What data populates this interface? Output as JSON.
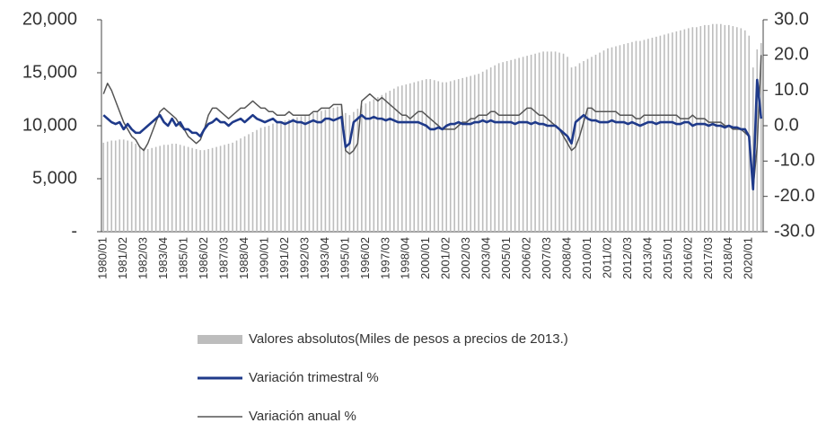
{
  "chart_data": {
    "type": "bar-line",
    "categories": [
      "1980/01",
      null,
      null,
      null,
      null,
      "1981/02",
      null,
      null,
      null,
      null,
      "1982/03",
      null,
      null,
      null,
      null,
      "1983/04",
      null,
      null,
      null,
      null,
      "1985/01",
      null,
      null,
      null,
      null,
      "1986/02",
      null,
      null,
      null,
      null,
      "1987/03",
      null,
      null,
      null,
      null,
      "1988/04",
      null,
      null,
      null,
      null,
      "1990/01",
      null,
      null,
      null,
      null,
      "1991/02",
      null,
      null,
      null,
      null,
      "1992/03",
      null,
      null,
      null,
      null,
      "1993/04",
      null,
      null,
      null,
      null,
      "1995/01",
      null,
      null,
      null,
      null,
      "1996/02",
      null,
      null,
      null,
      null,
      "1997/03",
      null,
      null,
      null,
      null,
      "1998/04",
      null,
      null,
      null,
      null,
      "2000/01",
      null,
      null,
      null,
      null,
      "2001/02",
      null,
      null,
      null,
      null,
      "2002/03",
      null,
      null,
      null,
      null,
      "2003/04",
      null,
      null,
      null,
      null,
      "2005/01",
      null,
      null,
      null,
      null,
      "2006/02",
      null,
      null,
      null,
      null,
      "2007/03",
      null,
      null,
      null,
      null,
      "2008/04",
      null,
      null,
      null,
      null,
      "2010/01",
      null,
      null,
      null,
      null,
      "2011/02",
      null,
      null,
      null,
      null,
      "2012/03",
      null,
      null,
      null,
      null,
      "2013/04",
      null,
      null,
      null,
      null,
      "2015/01",
      null,
      null,
      null,
      null,
      "2016/02",
      null,
      null,
      null,
      null,
      "2017/03",
      null,
      null,
      null,
      null,
      "2018/04",
      null,
      null,
      null,
      null,
      "2020/01",
      null,
      null,
      null
    ],
    "series": [
      {
        "name": "Valores absolutos(Miles de pesos a precios de 2013.)",
        "type": "bar",
        "color": "#bdbdbd",
        "values": [
          8400,
          8500,
          8600,
          8600,
          8700,
          8700,
          8600,
          8500,
          8300,
          8100,
          7900,
          7800,
          7900,
          8000,
          8100,
          8200,
          8200,
          8300,
          8300,
          8200,
          8100,
          8000,
          7900,
          7800,
          7700,
          7700,
          7800,
          7900,
          8000,
          8100,
          8200,
          8300,
          8400,
          8600,
          8800,
          9000,
          9200,
          9400,
          9600,
          9800,
          9900,
          10000,
          10200,
          10300,
          10400,
          10500,
          10600,
          10700,
          10800,
          10900,
          11000,
          11100,
          11200,
          11300,
          11400,
          11500,
          11600,
          11700,
          11800,
          11900,
          11200,
          11000,
          11300,
          11600,
          11900,
          12100,
          12300,
          12500,
          12700,
          12900,
          13100,
          13300,
          13500,
          13700,
          13800,
          13900,
          14000,
          14100,
          14200,
          14300,
          14400,
          14400,
          14300,
          14200,
          14100,
          14100,
          14200,
          14300,
          14400,
          14500,
          14600,
          14700,
          14800,
          14900,
          15100,
          15300,
          15500,
          15700,
          15900,
          16000,
          16100,
          16200,
          16300,
          16400,
          16500,
          16600,
          16700,
          16800,
          16900,
          17000,
          17000,
          17000,
          17000,
          16900,
          16800,
          16500,
          15500,
          15600,
          15900,
          16100,
          16300,
          16500,
          16700,
          16900,
          17100,
          17300,
          17400,
          17500,
          17600,
          17700,
          17800,
          17900,
          18000,
          18000,
          18100,
          18200,
          18300,
          18400,
          18500,
          18600,
          18700,
          18800,
          18900,
          19000,
          19100,
          19200,
          19300,
          19300,
          19400,
          19500,
          19500,
          19600,
          19600,
          19600,
          19500,
          19500,
          19400,
          19300,
          19200,
          19000,
          18500,
          15500,
          17200,
          17800
        ]
      },
      {
        "name": "Variación trimestral %",
        "type": "line",
        "axis": "y2",
        "color": "#1f3a8a",
        "values": [
          3,
          2,
          1,
          0.5,
          1,
          -1,
          0.5,
          -1,
          -2,
          -2,
          -1,
          0,
          1,
          2,
          3,
          1,
          0,
          2,
          0,
          1,
          -1,
          -1,
          -2,
          -2,
          -3,
          -1,
          0.5,
          1,
          2,
          1,
          1,
          0,
          1,
          1.5,
          2,
          1,
          2,
          3,
          2,
          1.5,
          1,
          1.5,
          2,
          1,
          1,
          0.5,
          1,
          1.5,
          1,
          1,
          0.5,
          1,
          1.5,
          1,
          1,
          2,
          2,
          1.5,
          2,
          2.5,
          -6,
          -5,
          1,
          2,
          3,
          2,
          2,
          2.5,
          2,
          2,
          1.5,
          2,
          1.5,
          1,
          1,
          1,
          1,
          1,
          1,
          0.5,
          0,
          -1,
          -1,
          -0.5,
          -1,
          0,
          0.5,
          0.5,
          1,
          0.5,
          0.5,
          0.5,
          1,
          1,
          1.5,
          1,
          1.5,
          1,
          1,
          1,
          1,
          1,
          0.5,
          1,
          1,
          1,
          0.5,
          1,
          0.5,
          0.5,
          0,
          0,
          0,
          -1,
          -2,
          -3,
          -5,
          1,
          2,
          3,
          2,
          1.5,
          1.5,
          1,
          1,
          1,
          1.5,
          1,
          1,
          1,
          0.5,
          1,
          0.5,
          0,
          0.5,
          1,
          1,
          0.5,
          1,
          1,
          1,
          1,
          0.5,
          0.5,
          1,
          1,
          0,
          0.5,
          0.5,
          0.5,
          0,
          0.5,
          0,
          0,
          -0.5,
          0,
          -0.5,
          -0.5,
          -1,
          -1,
          -3,
          -18,
          13,
          2
        ]
      },
      {
        "name": "Variación anual %",
        "type": "line",
        "axis": "y2",
        "color": "#555555",
        "values": [
          9,
          12,
          10,
          7,
          4,
          1,
          -1,
          -3,
          -4,
          -6,
          -7,
          -5,
          -2,
          1,
          4,
          5,
          4,
          3,
          2,
          0,
          -1,
          -3,
          -4,
          -5,
          -4,
          -1,
          3,
          5,
          5,
          4,
          3,
          2,
          3,
          4,
          5,
          5,
          6,
          7,
          6,
          5,
          5,
          4,
          4,
          3,
          3,
          3,
          4,
          3,
          3,
          3,
          3,
          3,
          4,
          4,
          5,
          5,
          5,
          6,
          6,
          6,
          -7,
          -8,
          -7,
          -5,
          7,
          8,
          9,
          8,
          7,
          8,
          7,
          6,
          5,
          4,
          3,
          3,
          2,
          3,
          4,
          4,
          3,
          2,
          1,
          0,
          -1,
          -1,
          -1,
          -1,
          0,
          1,
          1,
          2,
          2,
          3,
          3,
          3,
          4,
          4,
          3,
          3,
          3,
          3,
          3,
          3,
          4,
          5,
          5,
          4,
          3,
          3,
          2,
          1,
          0,
          -1,
          -3,
          -5,
          -7,
          -6,
          -3,
          1,
          5,
          5,
          4,
          4,
          4,
          4,
          4,
          4,
          3,
          3,
          3,
          3,
          2,
          2,
          3,
          3,
          3,
          3,
          3,
          3,
          3,
          3,
          3,
          2,
          2,
          2,
          3,
          2,
          2,
          2,
          1,
          1,
          1,
          1,
          0,
          0,
          -1,
          -1,
          -1,
          -2,
          -3,
          -18,
          -6,
          20
        ]
      }
    ],
    "ylim": [
      0,
      20000
    ],
    "yticks": [
      {
        "value": 0,
        "label": "-"
      },
      {
        "value": 5000,
        "label": "5,000"
      },
      {
        "value": 10000,
        "label": "10,000"
      },
      {
        "value": 15000,
        "label": "15,000"
      },
      {
        "value": 20000,
        "label": "20,000"
      }
    ],
    "y2lim": [
      -30,
      30
    ],
    "y2ticks": [
      {
        "value": -30,
        "label": "-30.0"
      },
      {
        "value": -20,
        "label": "-20.0"
      },
      {
        "value": -10,
        "label": "-10.0"
      },
      {
        "value": 0,
        "label": "0.0"
      },
      {
        "value": 10,
        "label": "10.0"
      },
      {
        "value": 20,
        "label": "20.0"
      },
      {
        "value": 30,
        "label": "30.0"
      }
    ],
    "grid": false,
    "legend": "bottom"
  }
}
